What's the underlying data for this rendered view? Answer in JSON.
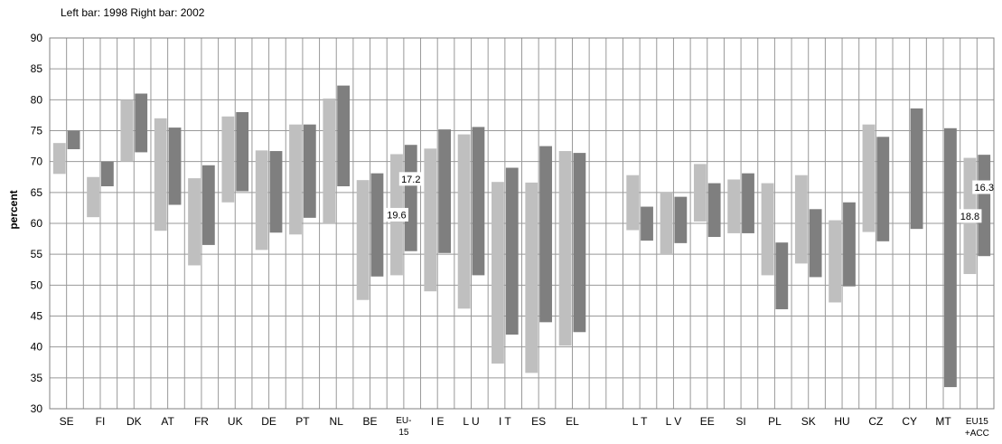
{
  "chart_data": {
    "type": "bar",
    "subtype": "floating-range",
    "note": "Left bar: 1998   Right bar: 2002",
    "ylabel": "percent",
    "ylim": [
      30,
      90
    ],
    "yticks": [
      30,
      35,
      40,
      45,
      50,
      55,
      60,
      65,
      70,
      75,
      80,
      85,
      90
    ],
    "grid": true,
    "colors": {
      "bar1998": "#bfbfbf",
      "bar2002": "#7f7f7f",
      "grid": "#999999"
    },
    "categories": [
      {
        "label": "SE",
        "r1998": [
          68,
          73
        ],
        "r2002": [
          72,
          75
        ]
      },
      {
        "label": "FI",
        "r1998": [
          61,
          67.5
        ],
        "r2002": [
          66,
          70
        ]
      },
      {
        "label": "DK",
        "r1998": [
          70,
          80
        ],
        "r2002": [
          71.5,
          81
        ]
      },
      {
        "label": "AT",
        "r1998": [
          58.8,
          77
        ],
        "r2002": [
          63,
          75.5
        ]
      },
      {
        "label": "FR",
        "r1998": [
          53.2,
          67.3
        ],
        "r2002": [
          56.5,
          69.4
        ]
      },
      {
        "label": "UK",
        "r1998": [
          63.4,
          77.3
        ],
        "r2002": [
          65.2,
          78
        ]
      },
      {
        "label": "DE",
        "r1998": [
          55.7,
          71.8
        ],
        "r2002": [
          58.5,
          71.7
        ]
      },
      {
        "label": "PT",
        "r1998": [
          58.2,
          76
        ],
        "r2002": [
          60.9,
          76
        ]
      },
      {
        "label": "NL",
        "r1998": [
          60,
          80.2
        ],
        "r2002": [
          66,
          82.3
        ]
      },
      {
        "label": "BE",
        "r1998": [
          47.6,
          67
        ],
        "r2002": [
          51.4,
          68.1
        ]
      },
      {
        "label": "EU-15",
        "r1998": [
          51.6,
          71.2
        ],
        "r2002": [
          55.5,
          72.7
        ]
      },
      {
        "label": "I E",
        "r1998": [
          49,
          72.1
        ],
        "r2002": [
          55.2,
          75.2
        ]
      },
      {
        "label": "L U",
        "r1998": [
          46.2,
          74.4
        ],
        "r2002": [
          51.6,
          75.6
        ]
      },
      {
        "label": "I T",
        "r1998": [
          37.3,
          66.7
        ],
        "r2002": [
          42,
          69
        ]
      },
      {
        "label": "ES",
        "r1998": [
          35.8,
          66.6
        ],
        "r2002": [
          44,
          72.5
        ]
      },
      {
        "label": "EL",
        "r1998": [
          40.2,
          71.7
        ],
        "r2002": [
          42.4,
          71.4
        ]
      },
      {
        "label": "",
        "gap": true
      },
      {
        "label": "L T",
        "r1998": [
          58.9,
          67.8
        ],
        "r2002": [
          57.2,
          62.7
        ]
      },
      {
        "label": "L V",
        "r1998": [
          55,
          65
        ],
        "r2002": [
          56.8,
          64.3
        ]
      },
      {
        "label": "EE",
        "r1998": [
          60.3,
          69.6
        ],
        "r2002": [
          57.8,
          66.5
        ]
      },
      {
        "label": "SI",
        "r1998": [
          58.4,
          67.1
        ],
        "r2002": [
          58.4,
          68.1
        ]
      },
      {
        "label": "PL",
        "r1998": [
          51.6,
          66.5
        ],
        "r2002": [
          46.1,
          56.9
        ]
      },
      {
        "label": "SK",
        "r1998": [
          53.5,
          67.8
        ],
        "r2002": [
          51.3,
          62.3
        ]
      },
      {
        "label": "HU",
        "r1998": [
          47.2,
          60.5
        ],
        "r2002": [
          49.8,
          63.4
        ]
      },
      {
        "label": "CZ",
        "r1998": [
          58.6,
          76
        ],
        "r2002": [
          57.1,
          74
        ]
      },
      {
        "label": "CY",
        "r1998": null,
        "r2002": [
          59.1,
          78.6
        ]
      },
      {
        "label": "MT",
        "r1998": null,
        "r2002": [
          33.5,
          75.4
        ]
      },
      {
        "label": "EU15\n+ACC",
        "r1998": [
          51.8,
          70.6
        ],
        "r2002": [
          54.7,
          71.1
        ]
      }
    ],
    "annotations": [
      {
        "category": "EU-15",
        "text": "17.2",
        "side": "right"
      },
      {
        "category": "EU-15",
        "text": "19.6",
        "side": "left"
      },
      {
        "category": "EU15\n+ACC",
        "text": "16.3",
        "side": "right"
      },
      {
        "category": "EU15\n+ACC",
        "text": "18.8",
        "side": "left"
      }
    ]
  }
}
